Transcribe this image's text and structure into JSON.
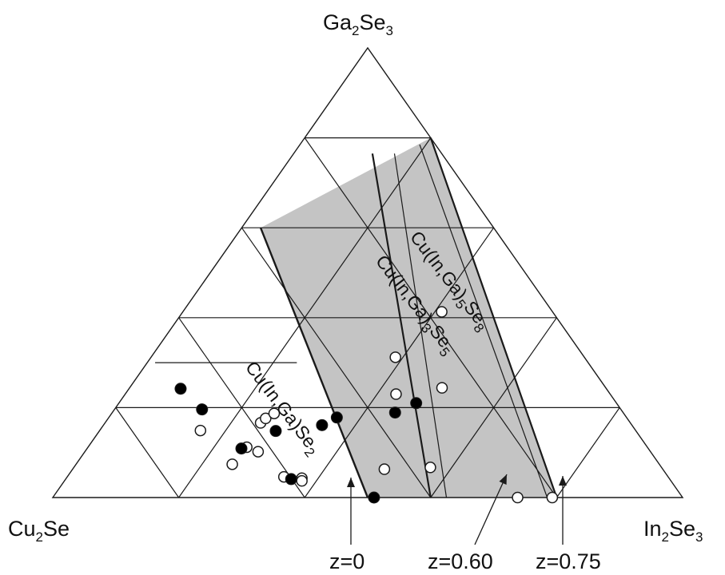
{
  "vertices": {
    "top": {
      "base": "Ga",
      "n1": "2",
      "mid": "Se",
      "n2": "3"
    },
    "left": {
      "base": "Cu",
      "n1": "2",
      "mid": "Se",
      "n2": ""
    },
    "right": {
      "base": "In",
      "n1": "2",
      "mid": "Se",
      "n2": "3"
    }
  },
  "phases": [
    {
      "id": "cigs-158",
      "base": "Cu(In,Ga)",
      "n1": "5",
      "mid": "Se",
      "n2": "8"
    },
    {
      "id": "cigs-135",
      "base": "Cu(In,Ga)",
      "n1": "3",
      "mid": "Se",
      "n2": "5"
    },
    {
      "id": "cigs-112",
      "base": "Cu(In,Ga)Se",
      "n1": "2",
      "mid": "",
      "n2": ""
    }
  ],
  "z_labels": [
    "z=0",
    "z=0.60",
    "z=0.75"
  ],
  "colors": {
    "region_fill": "#c4c4c4",
    "line": "#1a1a1a",
    "filled_marker": "#000000",
    "open_marker": "#ffffff"
  },
  "open_markers": [
    {
      "in2se3_pct": 41.1,
      "ga2se3_pct": 41.3
    },
    {
      "in2se3_pct": 38.8,
      "ga2se3_pct": 31.2
    },
    {
      "in2se3_pct": 49.6,
      "ga2se3_pct": 24.4
    },
    {
      "in2se3_pct": 43.0,
      "ga2se3_pct": 23.0
    },
    {
      "in2se3_pct": 24.7,
      "ga2se3_pct": 16.6
    },
    {
      "in2se3_pct": 25.0,
      "ga2se3_pct": 17.6
    },
    {
      "in2se3_pct": 25.8,
      "ga2se3_pct": 18.7
    },
    {
      "in2se3_pct": 16.0,
      "ga2se3_pct": 14.9
    },
    {
      "in2se3_pct": 25.2,
      "ga2se3_pct": 11.2
    },
    {
      "in2se3_pct": 27.5,
      "ga2se3_pct": 10.2
    },
    {
      "in2se3_pct": 24.8,
      "ga2se3_pct": 7.4
    },
    {
      "in2se3_pct": 34.4,
      "ga2se3_pct": 4.6
    },
    {
      "in2se3_pct": 37.4,
      "ga2se3_pct": 4.3
    },
    {
      "in2se3_pct": 37.7,
      "ga2se3_pct": 3.7
    },
    {
      "in2se3_pct": 49.5,
      "ga2se3_pct": 6.3
    },
    {
      "in2se3_pct": 56.6,
      "ga2se3_pct": 6.7
    },
    {
      "in2se3_pct": 73.8,
      "ga2se3_pct": 0.0
    },
    {
      "in2se3_pct": 79.3,
      "ga2se3_pct": 0.0
    }
  ],
  "filled_markers": [
    {
      "in2se3_pct": 8.2,
      "ga2se3_pct": 24.2
    },
    {
      "in2se3_pct": 13.9,
      "ga2se3_pct": 19.6
    },
    {
      "in2se3_pct": 47.2,
      "ga2se3_pct": 21.0
    },
    {
      "in2se3_pct": 44.9,
      "ga2se3_pct": 18.9
    },
    {
      "in2se3_pct": 28.0,
      "ga2se3_pct": 14.8
    },
    {
      "in2se3_pct": 34.7,
      "ga2se3_pct": 16.1
    },
    {
      "in2se3_pct": 36.2,
      "ga2se3_pct": 17.8
    },
    {
      "in2se3_pct": 24.5,
      "ga2se3_pct": 10.9
    },
    {
      "in2se3_pct": 35.8,
      "ga2se3_pct": 4.1
    },
    {
      "in2se3_pct": 51.0,
      "ga2se3_pct": 0.0
    }
  ]
}
